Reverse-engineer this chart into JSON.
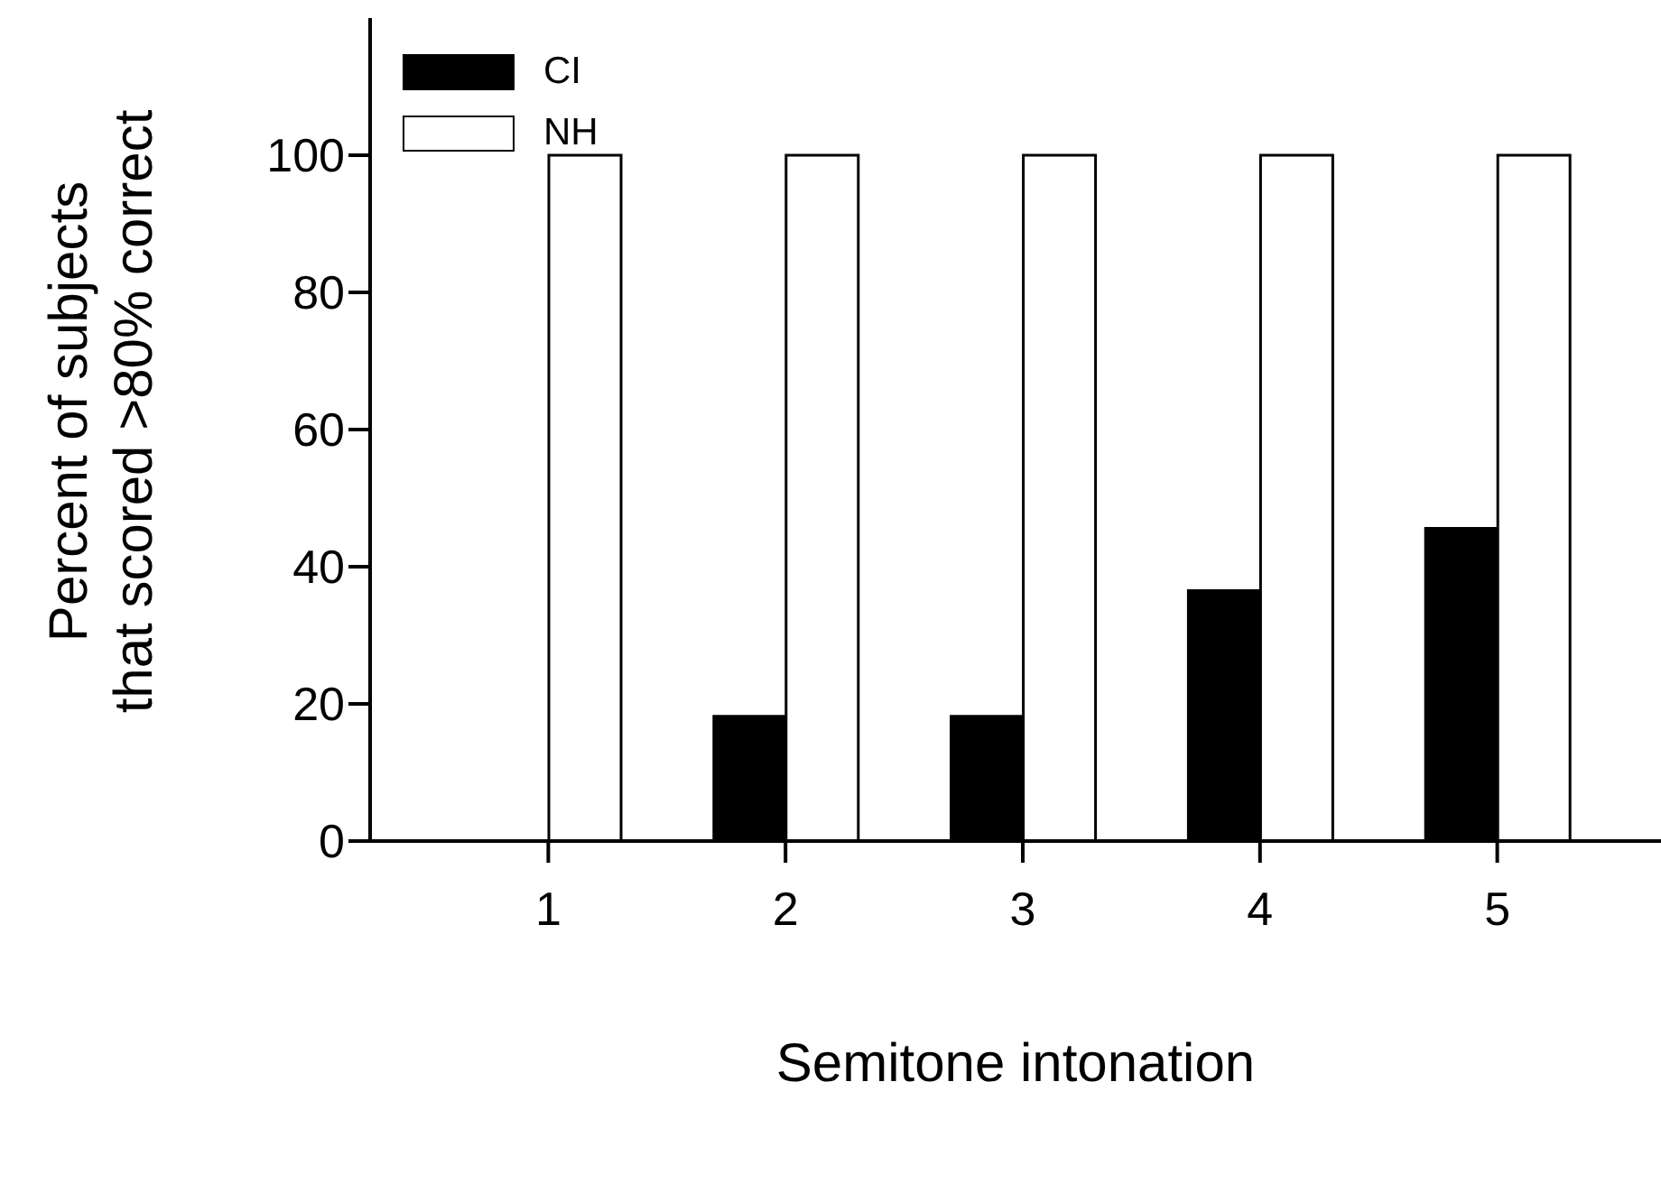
{
  "chart_data": {
    "type": "bar",
    "xlabel": "Semitone intonation",
    "ylabel": "Percent of subjects\nthat scored >80% correct",
    "categories": [
      "1",
      "2",
      "3",
      "4",
      "5"
    ],
    "series": [
      {
        "name": "CI",
        "color": "#000000",
        "values": [
          0,
          18.2,
          18.2,
          36.5,
          45.6
        ]
      },
      {
        "name": "NH",
        "color": "#ffffff",
        "values": [
          100,
          100,
          100,
          100,
          100
        ]
      }
    ],
    "ylim": [
      0,
      120
    ],
    "yticks": [
      0,
      20,
      40,
      60,
      80,
      100
    ],
    "grid": false,
    "legend": "top left"
  }
}
